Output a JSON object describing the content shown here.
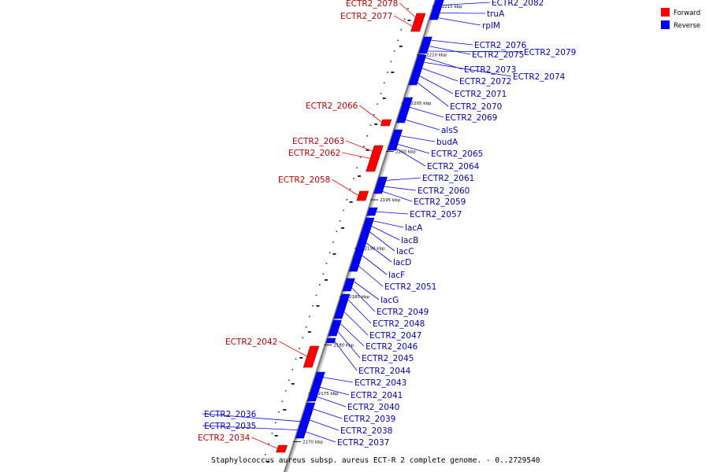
{
  "colors": {
    "forward": "#ff0000",
    "reverse": "#0000ff",
    "backbone": "#808080",
    "forward_text": "#c00000",
    "reverse_text": "#0000c0"
  },
  "legend": {
    "forward_label": "Forward",
    "reverse_label": "Reverse"
  },
  "caption": "Staphylococcus aureus subsp. aureus ECT-R 2 complete genome. - 0..2729540",
  "forward_genes": [
    "ECTR2_2078",
    "ECTR2_2077",
    "ECTR2_2066",
    "ECTR2_2063",
    "ECTR2_2062",
    "ECTR2_2058",
    "ECTR2_2042",
    "ECTR2_2034"
  ],
  "reverse_genes": [
    "ECTR2_2082",
    "truA",
    "rplM",
    "ECTR2_2076",
    "ECTR2_2075",
    "ECTR2_2079",
    "ECTR2_2073",
    "ECTR2_2074",
    "ECTR2_2072",
    "ECTR2_2071",
    "ECTR2_2070",
    "ECTR2_2069",
    "alsS",
    "budA",
    "ECTR2_2065",
    "ECTR2_2064",
    "ECTR2_2061",
    "ECTR2_2060",
    "ECTR2_2059",
    "ECTR2_2057",
    "lacA",
    "lacB",
    "lacC",
    "lacD",
    "lacF",
    "ECTR2_2051",
    "lacG",
    "ECTR2_2049",
    "ECTR2_2048",
    "ECTR2_2047",
    "ECTR2_2046",
    "ECTR2_2045",
    "ECTR2_2044",
    "ECTR2_2043",
    "ECTR2_2041",
    "ECTR2_2040",
    "ECTR2_2039",
    "ECTR2_2038",
    "ECTR2_2037",
    "ECTR2_2036",
    "ECTR2_2035"
  ],
  "ticks": [
    "2215 kbp",
    "2210 kbp",
    "2205 kbp",
    "2200 kbp",
    "2195 kbp",
    "2190 kbp",
    "2185 kbp",
    "2180 kbp",
    "2175 kbp",
    "2170 kbp"
  ]
}
